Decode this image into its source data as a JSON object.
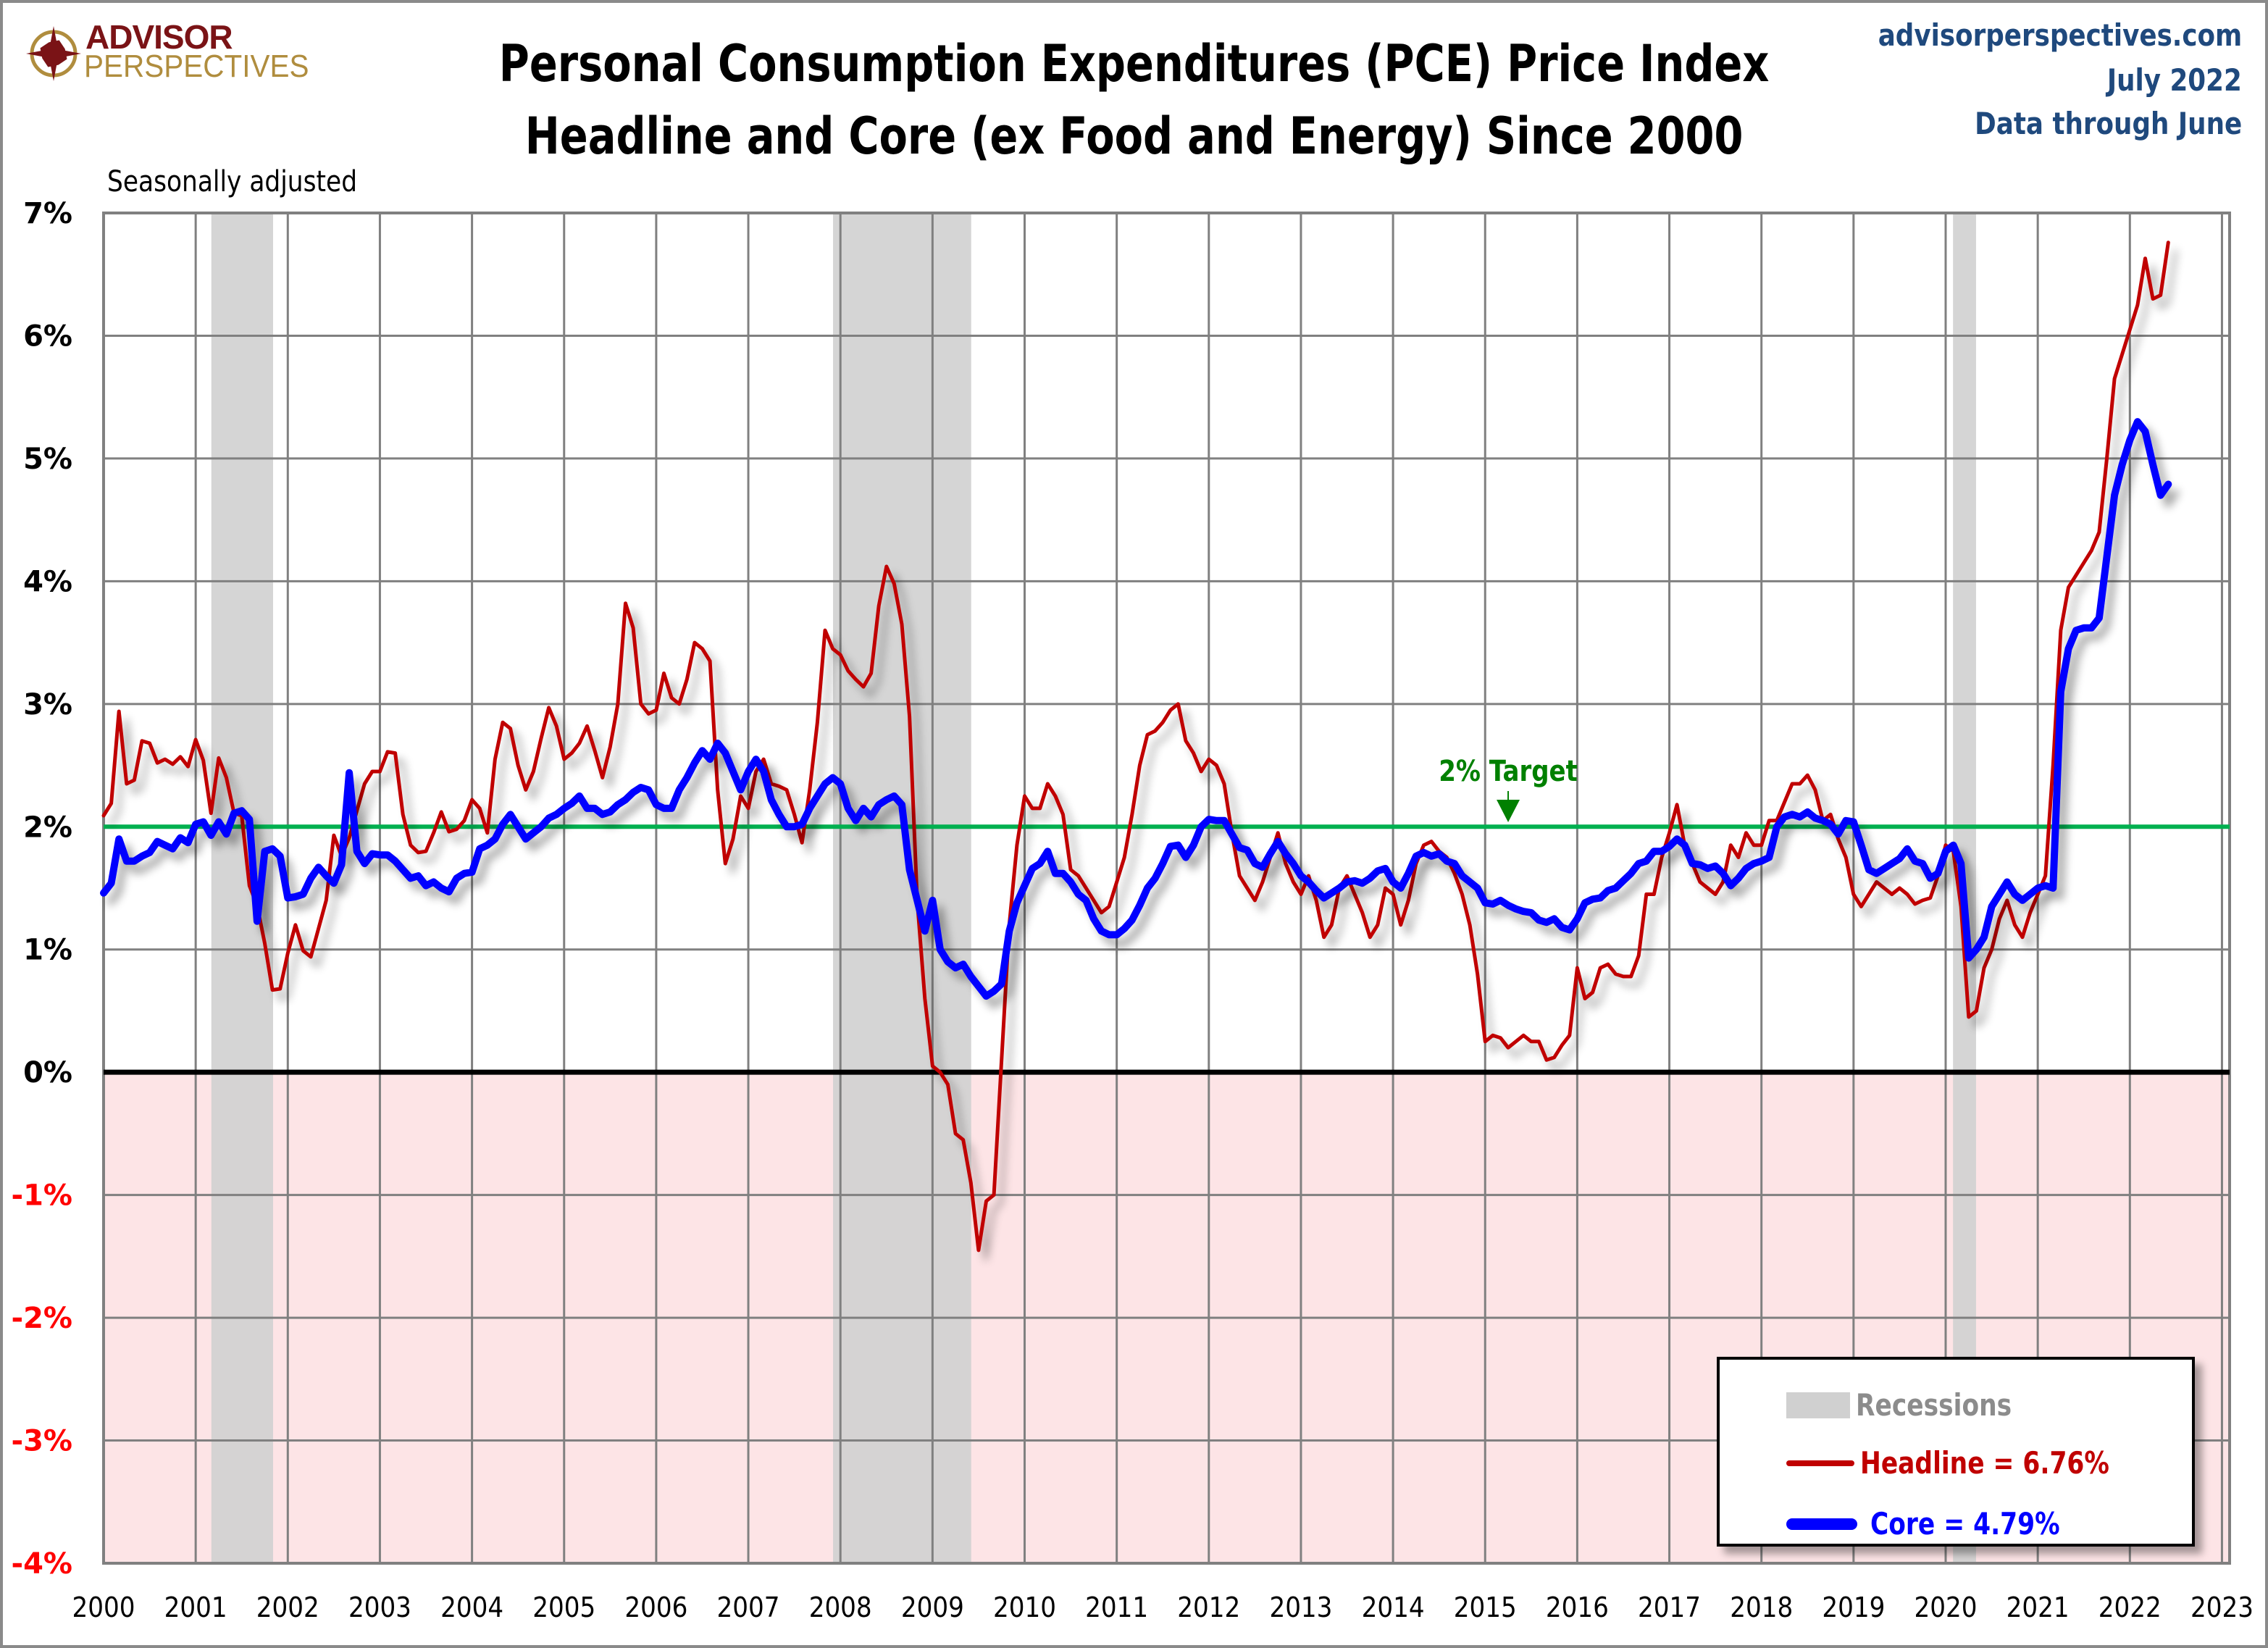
{
  "header": {
    "logo_line1": "ADVISOR",
    "logo_line2": "PERSPECTIVES",
    "title_line1": "Personal Consumption Expenditures (PCE) Price Index",
    "title_line2": "Headline and Core (ex Food and Energy) Since 2000",
    "site": "advisorperspectives.com",
    "date": "July 2022",
    "data_through": "Data through June",
    "note": "Seasonally adjusted"
  },
  "colors": {
    "headline": "#c00000",
    "core": "#0000ff",
    "target": "#00b050",
    "target_label": "#008000",
    "recession": "#d0d0d0",
    "negative_zone": "#fde4e6",
    "grid": "#808080",
    "axis_negative_label": "#ff0000",
    "header_blue": "#1f497d",
    "logo_red": "#7a1316",
    "logo_gold": "#b08d3e"
  },
  "legend": {
    "recessions": "Recessions",
    "headline": "Headline = 6.76%",
    "core": "Core = 4.79%"
  },
  "chart_data": {
    "type": "line",
    "title": "Personal Consumption Expenditures (PCE) Price Index — Headline and Core (ex Food and Energy) Since 2000",
    "subtitle": "Seasonally adjusted",
    "xlabel": "",
    "ylabel": "",
    "x_start": "2000-01",
    "x_frequency": "monthly",
    "xlim": [
      2000,
      2023
    ],
    "ylim": [
      -4,
      7
    ],
    "grid": true,
    "legend_position": "bottom-right",
    "x_ticks": [
      "2000",
      "2001",
      "2002",
      "2003",
      "2004",
      "2005",
      "2006",
      "2007",
      "2008",
      "2009",
      "2010",
      "2011",
      "2012",
      "2013",
      "2014",
      "2015",
      "2016",
      "2017",
      "2018",
      "2019",
      "2020",
      "2021",
      "2022",
      "2023"
    ],
    "y_ticks": [
      "-4%",
      "-3%",
      "-2%",
      "-1%",
      "0%",
      "1%",
      "2%",
      "3%",
      "4%",
      "5%",
      "6%",
      "7%"
    ],
    "y_tick_values": [
      -4,
      -3,
      -2,
      -1,
      0,
      1,
      2,
      3,
      4,
      5,
      6,
      7
    ],
    "reference_line": {
      "value": 2,
      "label": "2% Target",
      "label_x": 2015.25
    },
    "recessions": [
      {
        "start": 2001.17,
        "end": 2001.84
      },
      {
        "start": 2007.92,
        "end": 2009.42
      },
      {
        "start": 2020.08,
        "end": 2020.33
      }
    ],
    "series": [
      {
        "name": "Headline",
        "latest_label": "Headline = 6.76%",
        "values": [
          2.09,
          2.19,
          2.94,
          2.35,
          2.38,
          2.7,
          2.68,
          2.52,
          2.55,
          2.51,
          2.57,
          2.49,
          2.71,
          2.54,
          2.11,
          2.56,
          2.4,
          2.11,
          2.09,
          1.52,
          1.36,
          1.05,
          0.67,
          0.68,
          0.97,
          1.2,
          0.99,
          0.94,
          1.17,
          1.4,
          1.93,
          1.76,
          1.91,
          2.13,
          2.35,
          2.45,
          2.45,
          2.61,
          2.6,
          2.1,
          1.85,
          1.79,
          1.8,
          1.95,
          2.12,
          1.96,
          1.98,
          2.05,
          2.22,
          2.15,
          1.95,
          2.55,
          2.85,
          2.8,
          2.5,
          2.3,
          2.45,
          2.72,
          2.97,
          2.82,
          2.55,
          2.6,
          2.68,
          2.82,
          2.62,
          2.4,
          2.65,
          3.0,
          3.82,
          3.62,
          3.0,
          2.92,
          2.95,
          3.25,
          3.05,
          3.0,
          3.2,
          3.5,
          3.45,
          3.35,
          2.3,
          1.7,
          1.9,
          2.25,
          2.15,
          2.45,
          2.55,
          2.35,
          2.33,
          2.3,
          2.1,
          1.87,
          2.3,
          2.85,
          3.6,
          3.45,
          3.4,
          3.27,
          3.2,
          3.14,
          3.25,
          3.8,
          4.12,
          3.98,
          3.65,
          2.9,
          1.4,
          0.6,
          0.05,
          0.0,
          -0.1,
          -0.5,
          -0.55,
          -0.9,
          -1.45,
          -1.05,
          -1.0,
          0.1,
          1.2,
          1.85,
          2.25,
          2.15,
          2.15,
          2.35,
          2.25,
          2.1,
          1.65,
          1.6,
          1.5,
          1.4,
          1.3,
          1.35,
          1.55,
          1.75,
          2.1,
          2.5,
          2.75,
          2.78,
          2.85,
          2.95,
          3.0,
          2.7,
          2.6,
          2.45,
          2.55,
          2.5,
          2.35,
          1.95,
          1.6,
          1.5,
          1.4,
          1.55,
          1.75,
          1.95,
          1.7,
          1.55,
          1.45,
          1.6,
          1.4,
          1.1,
          1.2,
          1.5,
          1.6,
          1.45,
          1.3,
          1.1,
          1.2,
          1.5,
          1.45,
          1.2,
          1.4,
          1.7,
          1.85,
          1.88,
          1.8,
          1.75,
          1.62,
          1.45,
          1.2,
          0.8,
          0.25,
          0.3,
          0.28,
          0.2,
          0.25,
          0.3,
          0.25,
          0.25,
          0.1,
          0.12,
          0.22,
          0.3,
          0.85,
          0.6,
          0.65,
          0.85,
          0.88,
          0.8,
          0.78,
          0.78,
          0.95,
          1.45,
          1.45,
          1.75,
          1.95,
          2.18,
          1.85,
          1.7,
          1.55,
          1.5,
          1.45,
          1.55,
          1.85,
          1.75,
          1.95,
          1.85,
          1.85,
          2.05,
          2.05,
          2.2,
          2.35,
          2.35,
          2.42,
          2.3,
          2.05,
          2.1,
          1.9,
          1.75,
          1.45,
          1.35,
          1.45,
          1.55,
          1.5,
          1.45,
          1.5,
          1.45,
          1.37,
          1.4,
          1.42,
          1.6,
          1.85,
          1.8,
          1.35,
          0.45,
          0.5,
          0.85,
          1.0,
          1.25,
          1.4,
          1.2,
          1.1,
          1.3,
          1.45,
          1.6,
          2.5,
          3.6,
          3.95,
          4.05,
          4.15,
          4.25,
          4.4,
          5.0,
          5.65,
          5.85,
          6.05,
          6.25,
          6.63,
          6.3,
          6.33,
          6.76
        ]
      },
      {
        "name": "Core",
        "latest_label": "Core = 4.79%",
        "values": [
          1.46,
          1.54,
          1.9,
          1.72,
          1.72,
          1.76,
          1.79,
          1.88,
          1.85,
          1.82,
          1.91,
          1.87,
          2.02,
          2.04,
          1.93,
          2.04,
          1.94,
          2.11,
          2.13,
          2.06,
          1.23,
          1.8,
          1.82,
          1.76,
          1.42,
          1.43,
          1.45,
          1.58,
          1.67,
          1.6,
          1.54,
          1.69,
          2.44,
          1.8,
          1.7,
          1.78,
          1.77,
          1.77,
          1.72,
          1.65,
          1.58,
          1.6,
          1.52,
          1.55,
          1.5,
          1.47,
          1.58,
          1.62,
          1.63,
          1.82,
          1.85,
          1.9,
          2.02,
          2.1,
          2.0,
          1.9,
          1.95,
          2.0,
          2.07,
          2.1,
          2.15,
          2.19,
          2.25,
          2.15,
          2.15,
          2.1,
          2.12,
          2.18,
          2.22,
          2.28,
          2.32,
          2.3,
          2.18,
          2.15,
          2.15,
          2.3,
          2.4,
          2.52,
          2.62,
          2.55,
          2.68,
          2.6,
          2.45,
          2.3,
          2.45,
          2.55,
          2.45,
          2.22,
          2.1,
          2.0,
          2.0,
          2.02,
          2.15,
          2.25,
          2.35,
          2.4,
          2.35,
          2.15,
          2.05,
          2.15,
          2.08,
          2.18,
          2.22,
          2.25,
          2.18,
          1.65,
          1.4,
          1.15,
          1.4,
          1.0,
          0.9,
          0.85,
          0.88,
          0.78,
          0.7,
          0.62,
          0.66,
          0.72,
          1.15,
          1.38,
          1.52,
          1.66,
          1.7,
          1.8,
          1.62,
          1.62,
          1.55,
          1.45,
          1.4,
          1.25,
          1.15,
          1.12,
          1.12,
          1.17,
          1.24,
          1.36,
          1.5,
          1.58,
          1.7,
          1.84,
          1.85,
          1.75,
          1.85,
          2.0,
          2.06,
          2.05,
          2.05,
          1.94,
          1.83,
          1.81,
          1.7,
          1.67,
          1.78,
          1.88,
          1.78,
          1.7,
          1.6,
          1.55,
          1.48,
          1.42,
          1.46,
          1.5,
          1.55,
          1.56,
          1.54,
          1.58,
          1.64,
          1.66,
          1.55,
          1.5,
          1.62,
          1.76,
          1.79,
          1.76,
          1.78,
          1.72,
          1.7,
          1.6,
          1.55,
          1.5,
          1.38,
          1.37,
          1.4,
          1.36,
          1.33,
          1.31,
          1.3,
          1.24,
          1.22,
          1.25,
          1.18,
          1.16,
          1.25,
          1.38,
          1.41,
          1.42,
          1.48,
          1.5,
          1.56,
          1.62,
          1.7,
          1.72,
          1.8,
          1.8,
          1.84,
          1.9,
          1.85,
          1.7,
          1.69,
          1.66,
          1.68,
          1.62,
          1.52,
          1.58,
          1.66,
          1.7,
          1.72,
          1.75,
          2.0,
          2.08,
          2.1,
          2.08,
          2.12,
          2.07,
          2.05,
          2.02,
          1.94,
          2.05,
          2.04,
          1.85,
          1.65,
          1.62,
          1.66,
          1.7,
          1.74,
          1.82,
          1.72,
          1.7,
          1.58,
          1.62,
          1.8,
          1.85,
          1.7,
          0.93,
          1.0,
          1.1,
          1.35,
          1.45,
          1.55,
          1.45,
          1.4,
          1.45,
          1.5,
          1.52,
          1.5,
          3.1,
          3.45,
          3.6,
          3.62,
          3.62,
          3.7,
          4.2,
          4.7,
          4.95,
          5.15,
          5.3,
          5.22,
          4.95,
          4.7,
          4.79
        ]
      }
    ]
  }
}
